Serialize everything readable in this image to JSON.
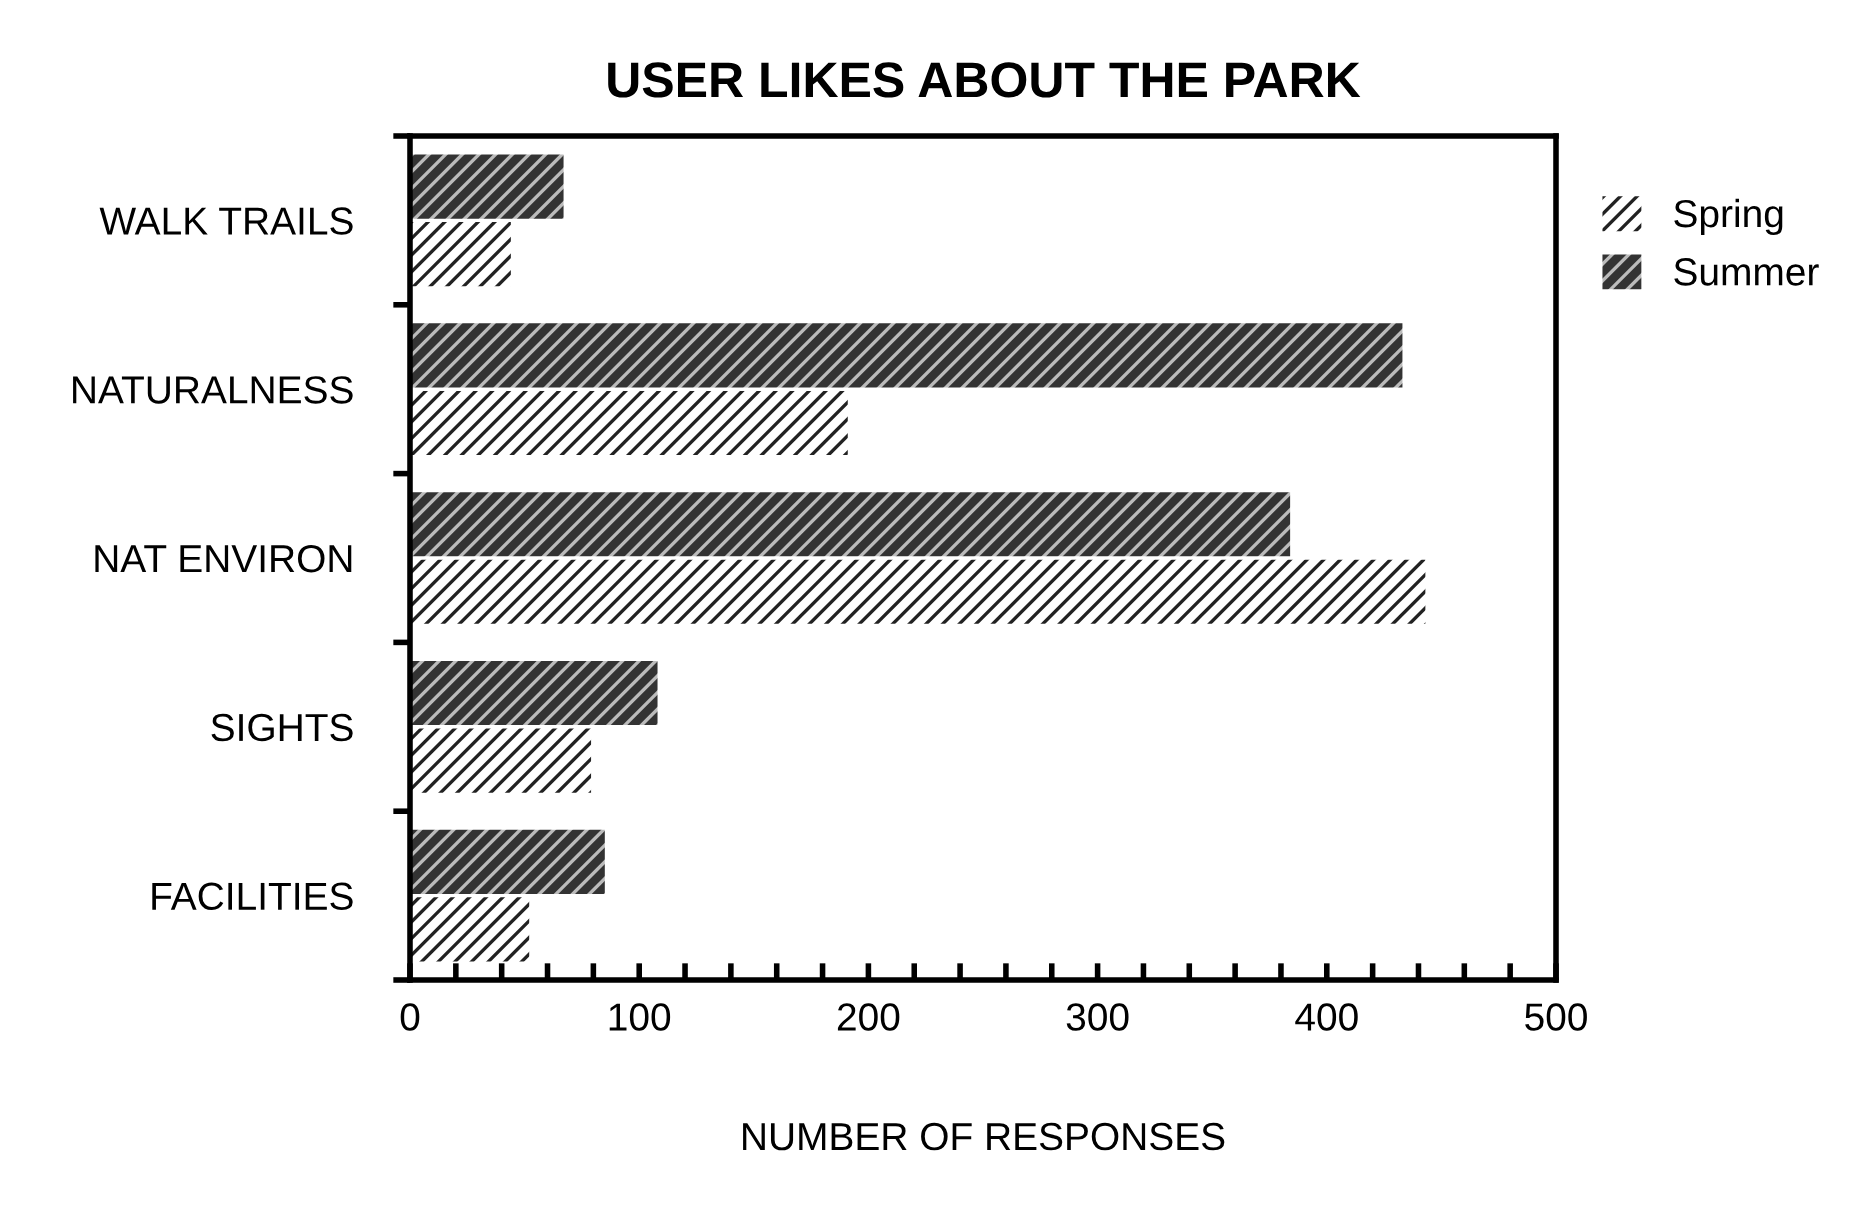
{
  "chart_data": {
    "type": "bar",
    "orientation": "horizontal",
    "title": "USER LIKES ABOUT THE PARK",
    "xlabel": "NUMBER OF RESPONSES",
    "categories": [
      "WALK TRAILS",
      "NATURALNESS",
      "NAT ENVIRON",
      "SIGHTS",
      "FACILITIES"
    ],
    "series": [
      {
        "name": "Spring",
        "color": "#ffffff",
        "values": [
          44,
          191,
          443,
          79,
          52
        ]
      },
      {
        "name": "Summer",
        "color": "#333333",
        "values": [
          67,
          433,
          384,
          108,
          85
        ]
      }
    ],
    "xlim": [
      0,
      500
    ],
    "xticks": [
      0,
      {
        "value": 20,
        "label": null
      },
      {
        "value": 40,
        "label": null
      },
      {
        "value": 60,
        "label": null
      },
      {
        "value": 80,
        "label": null
      },
      100,
      {
        "value": 120,
        "label": null
      },
      {
        "value": 140,
        "label": null
      },
      {
        "value": 160,
        "label": null
      },
      {
        "value": 180,
        "label": null
      },
      200,
      {
        "value": 220,
        "label": null
      },
      {
        "value": 240,
        "label": null
      },
      {
        "value": 260,
        "label": null
      },
      {
        "value": 280,
        "label": null
      },
      300,
      {
        "value": 320,
        "label": null
      },
      {
        "value": 340,
        "label": null
      },
      {
        "value": 360,
        "label": null
      },
      {
        "value": 380,
        "label": null
      },
      400,
      {
        "value": 420,
        "label": null
      },
      {
        "value": 440,
        "label": null
      },
      {
        "value": 460,
        "label": null
      },
      {
        "value": 480,
        "label": null
      },
      500
    ],
    "grid": false,
    "legend": "top right"
  }
}
